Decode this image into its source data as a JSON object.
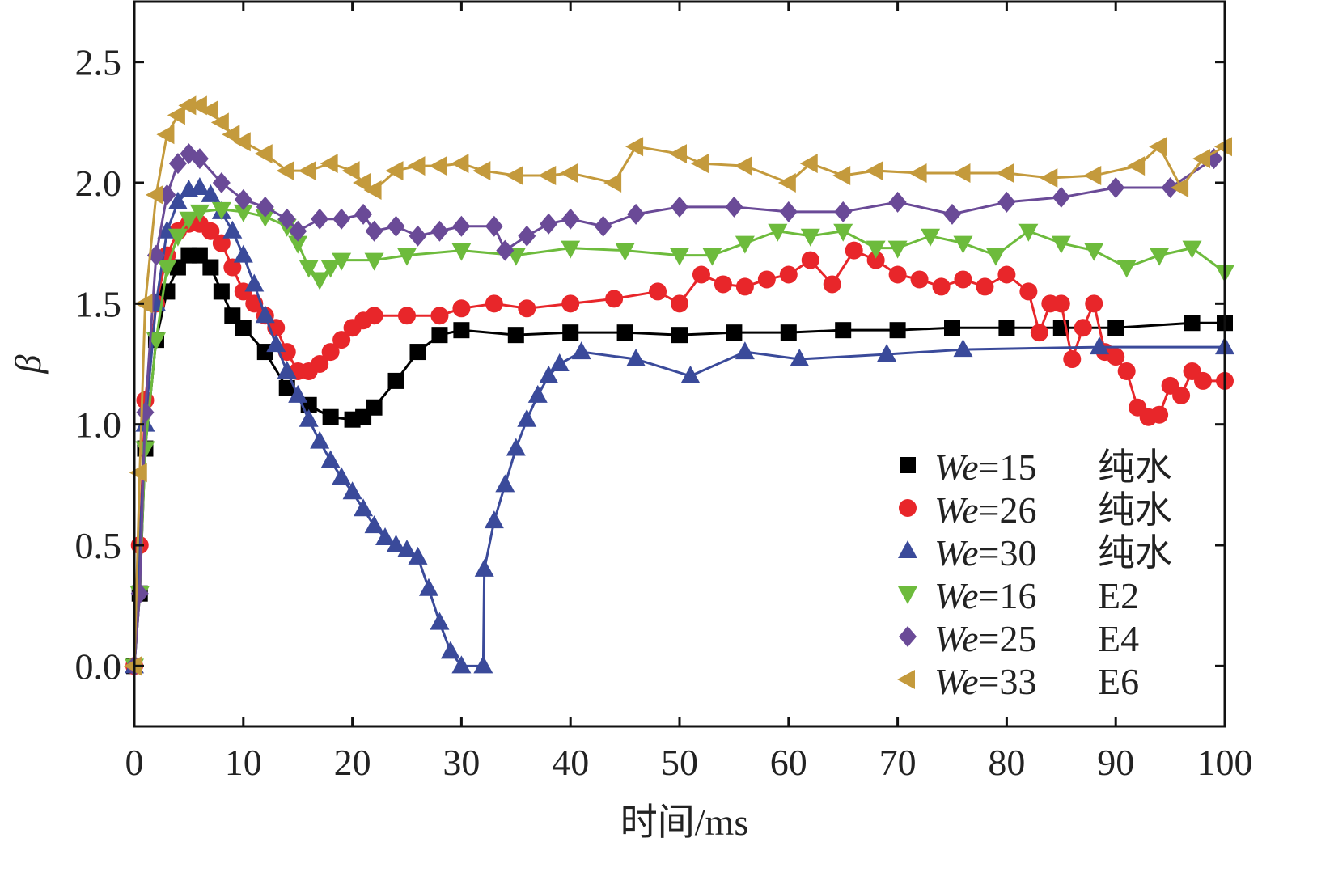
{
  "chart_data": {
    "type": "line",
    "title": "",
    "xlabel": "时间/ms",
    "ylabel": "β",
    "xlim": [
      0,
      100
    ],
    "ylim": [
      -0.25,
      2.75
    ],
    "xticks": [
      0,
      10,
      20,
      30,
      40,
      50,
      60,
      70,
      80,
      90,
      100
    ],
    "xtick_labels": [
      "0",
      "10",
      "20",
      "30",
      "40",
      "50",
      "60",
      "70",
      "80",
      "90",
      "100"
    ],
    "yticks": [
      0,
      0.5,
      1.0,
      1.5,
      2.0,
      2.5
    ],
    "ytick_labels": [
      "0.0",
      "0.5",
      "1.0",
      "1.5",
      "2.0",
      "2.5"
    ],
    "grid": false,
    "legend_position": "bottom-right",
    "series": [
      {
        "name": "We=15",
        "we": "We",
        "num": "=15",
        "fluid": "纯水",
        "color": "#000000",
        "marker": "square",
        "x": [
          0,
          0.5,
          1,
          2,
          3,
          4,
          5,
          6,
          7,
          8,
          9,
          10,
          12,
          14,
          16,
          18,
          20,
          21,
          22,
          24,
          26,
          28,
          30,
          35,
          40,
          45,
          50,
          55,
          60,
          65,
          70,
          75,
          80,
          85,
          90,
          97,
          100
        ],
        "y": [
          0,
          0.3,
          0.9,
          1.35,
          1.55,
          1.65,
          1.7,
          1.7,
          1.65,
          1.55,
          1.45,
          1.4,
          1.3,
          1.15,
          1.08,
          1.03,
          1.02,
          1.03,
          1.07,
          1.18,
          1.3,
          1.37,
          1.39,
          1.37,
          1.38,
          1.38,
          1.37,
          1.38,
          1.38,
          1.39,
          1.39,
          1.4,
          1.4,
          1.4,
          1.4,
          1.42,
          1.42
        ]
      },
      {
        "name": "We=26",
        "we": "We",
        "num": "=26",
        "fluid": "纯水",
        "color": "#e8262a",
        "marker": "circle",
        "x": [
          0,
          0.5,
          1,
          2,
          3,
          4,
          5,
          6,
          7,
          8,
          9,
          10,
          11,
          12,
          13,
          14,
          15,
          16,
          17,
          18,
          19,
          20,
          21,
          22,
          25,
          28,
          30,
          33,
          36,
          40,
          44,
          48,
          50,
          52,
          54,
          56,
          58,
          60,
          62,
          64,
          66,
          68,
          70,
          72,
          74,
          76,
          78,
          80,
          82,
          83,
          84,
          85,
          86,
          87,
          88,
          89,
          90,
          91,
          92,
          93,
          94,
          95,
          96,
          97,
          98,
          100
        ],
        "y": [
          0,
          0.5,
          1.1,
          1.5,
          1.7,
          1.8,
          1.83,
          1.83,
          1.8,
          1.75,
          1.65,
          1.55,
          1.5,
          1.45,
          1.4,
          1.3,
          1.22,
          1.22,
          1.25,
          1.3,
          1.35,
          1.4,
          1.43,
          1.45,
          1.45,
          1.45,
          1.48,
          1.5,
          1.48,
          1.5,
          1.52,
          1.55,
          1.5,
          1.62,
          1.58,
          1.57,
          1.6,
          1.62,
          1.68,
          1.58,
          1.72,
          1.68,
          1.62,
          1.6,
          1.57,
          1.6,
          1.57,
          1.62,
          1.55,
          1.38,
          1.5,
          1.5,
          1.27,
          1.4,
          1.5,
          1.3,
          1.28,
          1.22,
          1.07,
          1.03,
          1.04,
          1.16,
          1.12,
          1.22,
          1.18,
          1.18
        ]
      },
      {
        "name": "We=30",
        "we": "We",
        "num": "=30",
        "fluid": "纯水",
        "color": "#3a4a9a",
        "marker": "triangle-up",
        "x": [
          0,
          1,
          2,
          3,
          4,
          5,
          6,
          7,
          8,
          9,
          10,
          11,
          12,
          13,
          14,
          15,
          16,
          17,
          18,
          19,
          20,
          21,
          22,
          23,
          24,
          25,
          26,
          27,
          28,
          29,
          30,
          32,
          32.1,
          33,
          34,
          35,
          36,
          37,
          38,
          39,
          41,
          46,
          51,
          56,
          61,
          69,
          76,
          88.5,
          100
        ],
        "y": [
          0,
          1.0,
          1.5,
          1.8,
          1.92,
          1.97,
          1.98,
          1.95,
          1.88,
          1.8,
          1.7,
          1.58,
          1.45,
          1.33,
          1.22,
          1.12,
          1.02,
          0.93,
          0.85,
          0.78,
          0.72,
          0.65,
          0.58,
          0.53,
          0.5,
          0.48,
          0.45,
          0.32,
          0.18,
          0.06,
          0.0,
          0.0,
          0.4,
          0.6,
          0.75,
          0.9,
          1.02,
          1.12,
          1.2,
          1.25,
          1.3,
          1.27,
          1.2,
          1.3,
          1.27,
          1.29,
          1.31,
          1.32,
          1.32
        ]
      },
      {
        "name": "We=16",
        "we": "We",
        "num": "=16",
        "fluid": "E2",
        "color": "#6dbb3c",
        "marker": "triangle-down",
        "x": [
          0,
          0.5,
          1,
          2,
          3,
          4,
          5,
          6,
          8,
          10,
          12,
          14,
          15,
          16,
          17,
          18,
          19,
          22,
          25,
          30,
          35,
          40,
          45,
          50,
          53,
          56,
          59,
          62,
          65,
          68,
          70,
          73,
          76,
          79,
          82,
          85,
          88,
          91,
          94,
          97,
          100
        ],
        "y": [
          0,
          0.3,
          0.9,
          1.35,
          1.65,
          1.78,
          1.85,
          1.88,
          1.89,
          1.88,
          1.86,
          1.82,
          1.75,
          1.65,
          1.6,
          1.65,
          1.68,
          1.68,
          1.7,
          1.72,
          1.7,
          1.73,
          1.72,
          1.7,
          1.7,
          1.75,
          1.8,
          1.78,
          1.8,
          1.73,
          1.73,
          1.78,
          1.75,
          1.7,
          1.8,
          1.75,
          1.72,
          1.65,
          1.7,
          1.73,
          1.63
        ]
      },
      {
        "name": "We=25",
        "we": "We",
        "num": "=25",
        "fluid": "E4",
        "color": "#6a4a97",
        "marker": "diamond",
        "x": [
          0,
          0.5,
          1,
          2,
          3,
          4,
          5,
          6,
          8,
          10,
          12,
          14,
          15,
          17,
          19,
          21,
          22,
          24,
          26,
          28,
          30,
          33,
          34,
          36,
          38,
          40,
          43,
          46,
          50,
          55,
          60,
          65,
          70,
          75,
          80,
          85,
          90,
          95,
          99
        ],
        "y": [
          0,
          0.3,
          1.05,
          1.7,
          1.95,
          2.08,
          2.12,
          2.1,
          2.0,
          1.93,
          1.9,
          1.85,
          1.8,
          1.85,
          1.85,
          1.87,
          1.8,
          1.82,
          1.78,
          1.8,
          1.82,
          1.82,
          1.72,
          1.78,
          1.83,
          1.85,
          1.82,
          1.87,
          1.9,
          1.9,
          1.88,
          1.88,
          1.92,
          1.87,
          1.92,
          1.94,
          1.98,
          1.98,
          2.1
        ]
      },
      {
        "name": "We=33",
        "we": "We",
        "num": "=33",
        "fluid": "E6",
        "color": "#c49a3c",
        "marker": "triangle-left",
        "x": [
          0,
          0.5,
          1,
          2,
          3,
          4,
          5,
          6,
          7,
          8,
          9,
          10,
          12,
          14,
          16,
          18,
          20,
          21,
          22,
          24,
          26,
          28,
          30,
          32,
          35,
          38,
          40,
          44,
          46,
          50,
          52,
          56,
          60,
          62,
          65,
          68,
          72,
          76,
          80,
          84,
          88,
          92,
          94,
          96,
          98,
          100
        ],
        "y": [
          0,
          0.8,
          1.5,
          1.95,
          2.2,
          2.28,
          2.32,
          2.32,
          2.3,
          2.25,
          2.2,
          2.17,
          2.12,
          2.05,
          2.05,
          2.08,
          2.05,
          2.0,
          1.97,
          2.05,
          2.07,
          2.07,
          2.08,
          2.05,
          2.03,
          2.03,
          2.04,
          2.0,
          2.15,
          2.12,
          2.08,
          2.07,
          2.0,
          2.08,
          2.03,
          2.05,
          2.04,
          2.04,
          2.04,
          2.02,
          2.03,
          2.07,
          2.15,
          1.98,
          2.1,
          2.15
        ]
      }
    ]
  }
}
